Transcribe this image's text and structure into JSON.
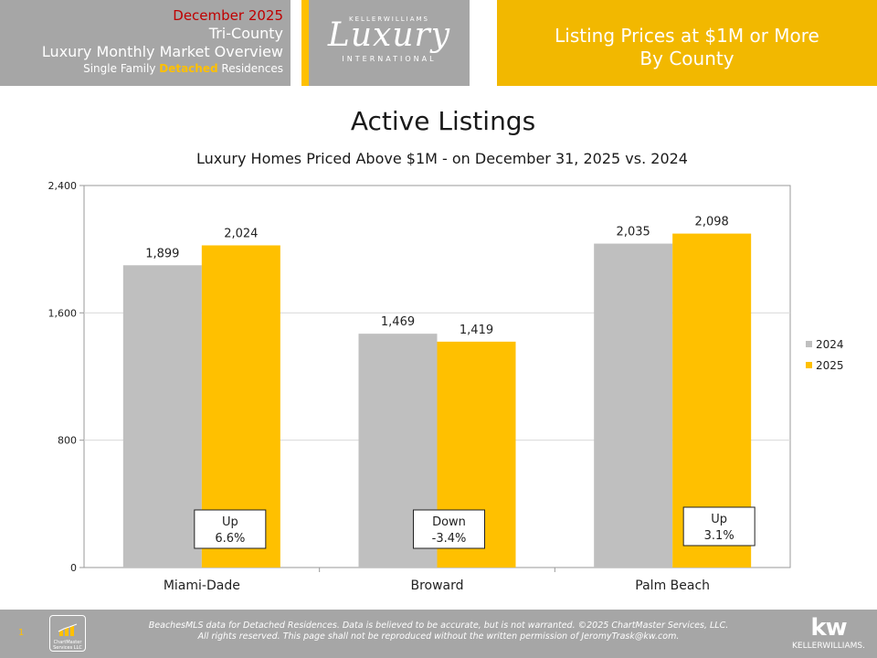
{
  "header": {
    "date": "December 2025",
    "region": "Tri-County",
    "overview": "Luxury Monthly Market Overview",
    "type_prefix": "Single Family ",
    "type_highlight": "Detached",
    "type_suffix": " Residences",
    "logo_top": "KELLERWILLIAMS",
    "logo_mid": "Luxury",
    "logo_bot": "INTERNATIONAL",
    "right_line1": "Listing Prices at $1M or More",
    "right_line2": "By County"
  },
  "titles": {
    "main": "Active Listings",
    "sub": "Luxury Homes Priced Above $1M - on December 31,  2025 vs. 2024"
  },
  "colors": {
    "series_2024": "#bfbfbf",
    "series_2025": "#ffc000",
    "header_gray": "#a6a6a6",
    "header_gold": "#f2b800",
    "date_red": "#c00000"
  },
  "chart_data": {
    "type": "bar",
    "categories": [
      "Miami-Dade",
      "Broward",
      "Palm Beach"
    ],
    "series": [
      {
        "name": "2024",
        "values": [
          1899,
          1469,
          2035
        ],
        "labels": [
          "1,899",
          "1,469",
          "2,035"
        ]
      },
      {
        "name": "2025",
        "values": [
          2024,
          1419,
          2098
        ],
        "labels": [
          "2,024",
          "1,419",
          "2,098"
        ]
      }
    ],
    "ylim": [
      0,
      2400
    ],
    "yticks": [
      0,
      800,
      1600,
      2400
    ],
    "ytick_labels": [
      "0",
      "800",
      "1,600",
      "2,400"
    ],
    "grid": true,
    "legend": "right",
    "annotations": [
      {
        "category": "Miami-Dade",
        "line1": "Up",
        "line2": "6.6%"
      },
      {
        "category": "Broward",
        "line1": "Down",
        "line2": "-3.4%"
      },
      {
        "category": "Palm Beach",
        "line1": "Up",
        "line2": "3.1%"
      }
    ]
  },
  "footer": {
    "page": "1",
    "logo_text": "ChartMaster Services LLC",
    "line1": "BeachesMLS data for Detached Residences.  Data is believed to be accurate, but is not warranted.  ©2025  ChartMaster Services, LLC.",
    "line2": "All rights reserved. This page shall not be reproduced without the written permission of JeromyTrask@kw.com.",
    "kw_mark": "kw",
    "kw_name": "KELLERWILLIAMS."
  }
}
